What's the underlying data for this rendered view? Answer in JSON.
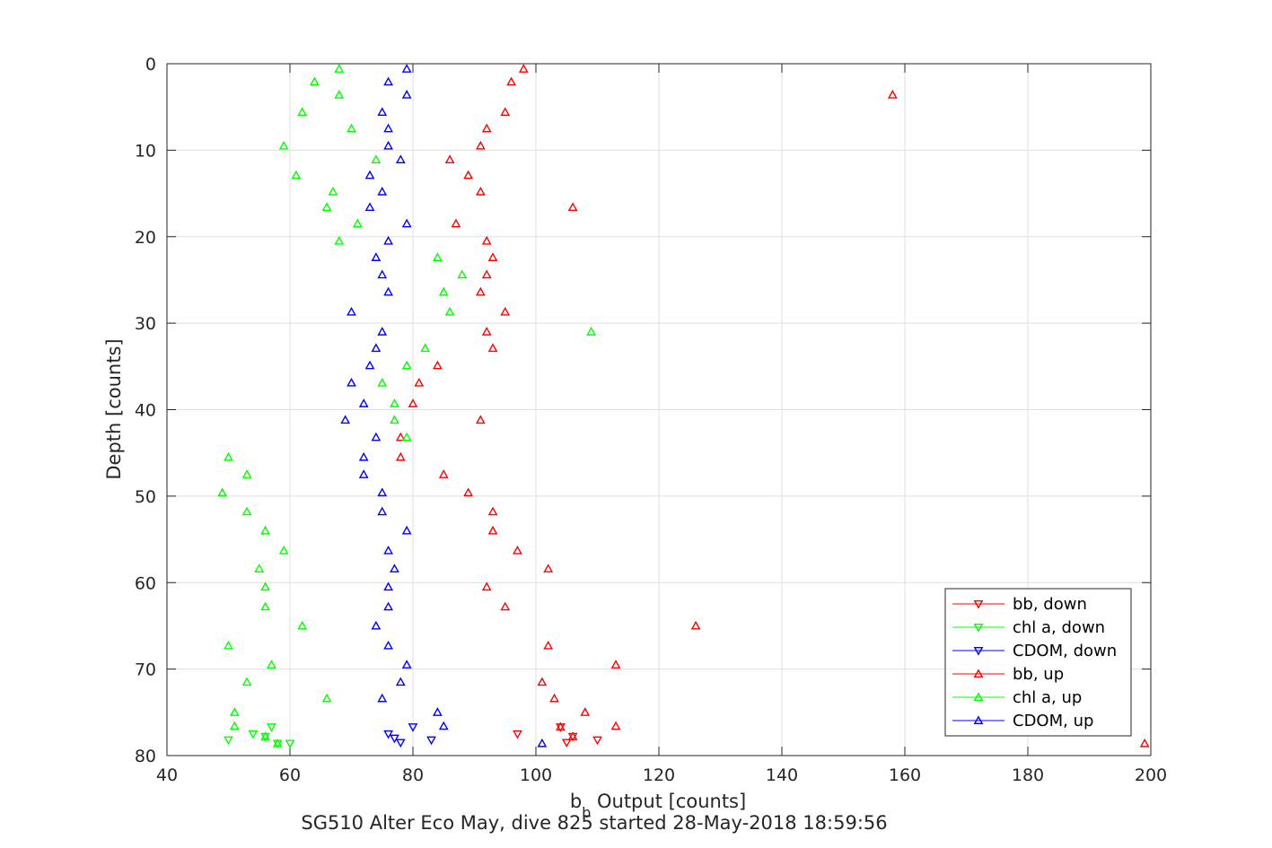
{
  "chart_data": {
    "type": "scatter",
    "title": "",
    "xlabel_main": "b",
    "xlabel_sub": "b",
    "xlabel_rest": " Output [counts]",
    "subtitle": "SG510 Alter Eco May, dive 825 started 28-May-2018 18:59:56",
    "ylabel": "Depth [counts]",
    "xlim": [
      40,
      200
    ],
    "ylim": [
      0,
      80
    ],
    "y_reversed": true,
    "grid": true,
    "xticks": [
      "40",
      "60",
      "80",
      "100",
      "120",
      "140",
      "160",
      "180",
      "200"
    ],
    "yticks": [
      "0",
      "10",
      "20",
      "30",
      "40",
      "50",
      "60",
      "70",
      "80"
    ],
    "legend_position": "bottom-right",
    "series": [
      {
        "name": "bb, down",
        "color": "#ff0000",
        "marker": "down",
        "points": [
          [
            97,
            77.5
          ],
          [
            104,
            76.7
          ],
          [
            106,
            77.8
          ],
          [
            110,
            78.2
          ],
          [
            105,
            78.5
          ]
        ]
      },
      {
        "name": "chl a, down",
        "color": "#00ff00",
        "marker": "down",
        "points": [
          [
            50,
            78.2
          ],
          [
            54,
            77.5
          ],
          [
            57,
            76.7
          ],
          [
            56,
            77.8
          ],
          [
            58,
            78.6
          ],
          [
            60,
            78.6
          ]
        ]
      },
      {
        "name": "CDOM, down",
        "color": "#0000ff",
        "marker": "down",
        "points": [
          [
            76,
            77.5
          ],
          [
            77,
            78
          ],
          [
            78,
            78.5
          ],
          [
            80,
            76.7
          ],
          [
            83,
            78.2
          ]
        ]
      },
      {
        "name": "bb, up",
        "color": "#ff0000",
        "marker": "up",
        "points": [
          [
            98,
            0.6
          ],
          [
            96,
            2.1
          ],
          [
            158,
            3.6
          ],
          [
            95,
            5.6
          ],
          [
            92,
            7.5
          ],
          [
            91,
            9.5
          ],
          [
            86,
            11.1
          ],
          [
            89,
            12.9
          ],
          [
            91,
            14.8
          ],
          [
            106,
            16.6
          ],
          [
            87,
            18.5
          ],
          [
            92,
            20.5
          ],
          [
            93,
            22.4
          ],
          [
            92,
            24.4
          ],
          [
            91,
            26.4
          ],
          [
            95,
            28.7
          ],
          [
            92,
            31
          ],
          [
            93,
            32.9
          ],
          [
            84,
            34.9
          ],
          [
            81,
            36.9
          ],
          [
            80,
            39.3
          ],
          [
            91,
            41.2
          ],
          [
            78,
            43.2
          ],
          [
            78,
            45.5
          ],
          [
            85,
            47.5
          ],
          [
            89,
            49.6
          ],
          [
            93,
            51.8
          ],
          [
            93,
            54
          ],
          [
            97,
            56.3
          ],
          [
            102,
            58.4
          ],
          [
            92,
            60.5
          ],
          [
            95,
            62.8
          ],
          [
            126,
            65
          ],
          [
            102,
            67.3
          ],
          [
            113,
            69.5
          ],
          [
            101,
            71.5
          ],
          [
            103,
            73.4
          ],
          [
            108,
            75
          ],
          [
            113,
            76.6
          ],
          [
            104,
            76.7
          ],
          [
            106,
            77.8
          ],
          [
            199,
            78.6
          ]
        ]
      },
      {
        "name": "chl a, up",
        "color": "#00ff00",
        "marker": "up",
        "points": [
          [
            68,
            0.6
          ],
          [
            64,
            2.1
          ],
          [
            68,
            3.6
          ],
          [
            62,
            5.6
          ],
          [
            70,
            7.5
          ],
          [
            59,
            9.5
          ],
          [
            74,
            11.1
          ],
          [
            61,
            12.9
          ],
          [
            67,
            14.8
          ],
          [
            66,
            16.6
          ],
          [
            71,
            18.5
          ],
          [
            68,
            20.5
          ],
          [
            84,
            22.4
          ],
          [
            88,
            24.4
          ],
          [
            85,
            26.4
          ],
          [
            86,
            28.7
          ],
          [
            109,
            31
          ],
          [
            82,
            32.9
          ],
          [
            79,
            34.9
          ],
          [
            75,
            36.9
          ],
          [
            77,
            39.3
          ],
          [
            77,
            41.2
          ],
          [
            79,
            43.2
          ],
          [
            50,
            45.5
          ],
          [
            53,
            47.5
          ],
          [
            49,
            49.6
          ],
          [
            53,
            51.8
          ],
          [
            56,
            54
          ],
          [
            59,
            56.3
          ],
          [
            55,
            58.4
          ],
          [
            56,
            60.5
          ],
          [
            56,
            62.8
          ],
          [
            62,
            65
          ],
          [
            50,
            67.3
          ],
          [
            57,
            69.5
          ],
          [
            53,
            71.5
          ],
          [
            66,
            73.4
          ],
          [
            51,
            75
          ],
          [
            51,
            76.6
          ],
          [
            56,
            77.8
          ],
          [
            58,
            78.6
          ]
        ]
      },
      {
        "name": "CDOM, up",
        "color": "#0000ff",
        "marker": "up",
        "points": [
          [
            79,
            0.6
          ],
          [
            76,
            2.1
          ],
          [
            79,
            3.6
          ],
          [
            75,
            5.6
          ],
          [
            76,
            7.5
          ],
          [
            76,
            9.5
          ],
          [
            78,
            11.1
          ],
          [
            73,
            12.9
          ],
          [
            75,
            14.8
          ],
          [
            73,
            16.6
          ],
          [
            79,
            18.5
          ],
          [
            76,
            20.5
          ],
          [
            74,
            22.4
          ],
          [
            75,
            24.4
          ],
          [
            76,
            26.4
          ],
          [
            70,
            28.7
          ],
          [
            75,
            31
          ],
          [
            74,
            32.9
          ],
          [
            73,
            34.9
          ],
          [
            70,
            36.9
          ],
          [
            72,
            39.3
          ],
          [
            69,
            41.2
          ],
          [
            74,
            43.2
          ],
          [
            72,
            45.5
          ],
          [
            72,
            47.5
          ],
          [
            75,
            49.6
          ],
          [
            75,
            51.8
          ],
          [
            79,
            54
          ],
          [
            76,
            56.3
          ],
          [
            77,
            58.4
          ],
          [
            76,
            60.5
          ],
          [
            76,
            62.8
          ],
          [
            74,
            65
          ],
          [
            76,
            67.3
          ],
          [
            79,
            69.5
          ],
          [
            78,
            71.5
          ],
          [
            75,
            73.4
          ],
          [
            84,
            75
          ],
          [
            85,
            76.6
          ],
          [
            101,
            78.6
          ]
        ]
      }
    ]
  }
}
